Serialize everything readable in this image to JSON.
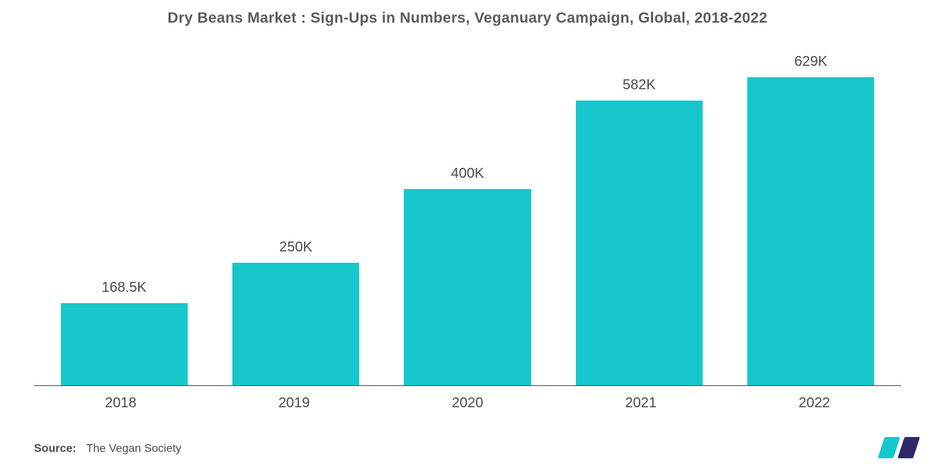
{
  "chart": {
    "type": "bar",
    "title": "Dry Beans Market : Sign-Ups in Numbers, Veganuary Campaign, Global, 2018-2022",
    "title_color": "#5b5b5b",
    "title_fontsize": 21,
    "background_color": "#ffffff",
    "axis_color": "#4a4a4a",
    "categories": [
      "2018",
      "2019",
      "2020",
      "2021",
      "2022"
    ],
    "value_labels": [
      "168.5K",
      "250K",
      "400K",
      "582K",
      "629K"
    ],
    "values": [
      168.5,
      250,
      400,
      582,
      629
    ],
    "ylim": [
      0,
      700
    ],
    "bar_color": "#16c8cc",
    "bar_width_pct": 74,
    "label_color": "#4a4a4a",
    "label_fontsize": 20,
    "xaxis_fontsize": 20
  },
  "source": {
    "prefix": "Source:",
    "text": "The Vegan Society"
  },
  "logo": {
    "color_left": "#14c7cc",
    "color_right": "#2e2a6a"
  }
}
